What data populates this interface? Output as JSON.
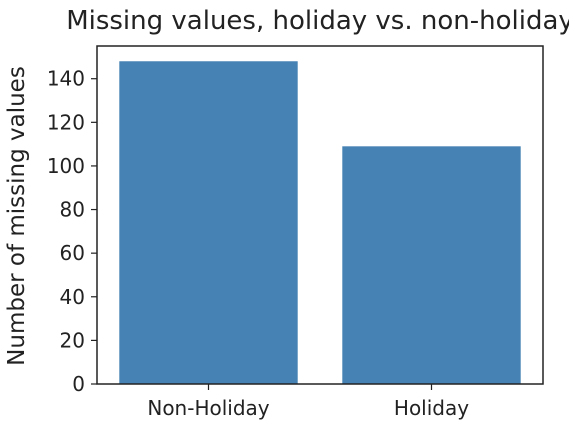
{
  "chart_data": {
    "type": "bar",
    "title": "Missing values, holiday vs. non-holiday",
    "xlabel": "",
    "ylabel": "Number of missing values",
    "categories": [
      "Non-Holiday",
      "Holiday"
    ],
    "values": [
      148,
      109
    ],
    "ylim": [
      0,
      155
    ],
    "yticks": [
      0,
      20,
      40,
      60,
      80,
      100,
      120,
      140
    ],
    "grid": false,
    "legend": "none",
    "bar_color": "#4682b4",
    "axis_color": "#222222"
  }
}
